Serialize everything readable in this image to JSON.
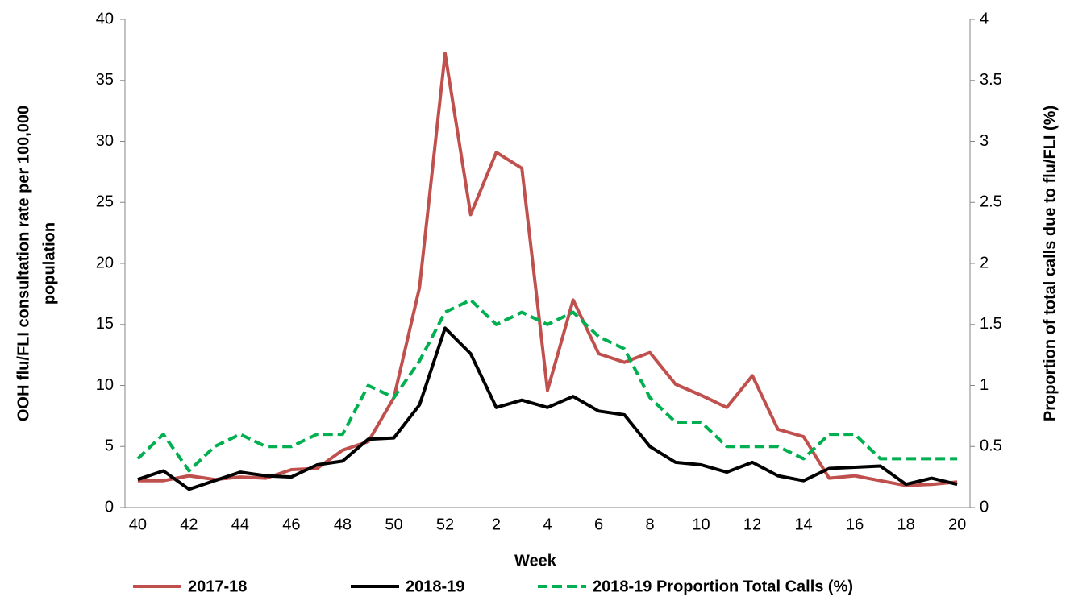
{
  "chart_data": {
    "type": "line",
    "xlabel": "Week",
    "ylabel": [
      "OOH flu/FLI consultation rate per 100,000",
      "population"
    ],
    "y2label": "Proportion of total calls due to flu/FLI (%)",
    "categories": [
      "40",
      null,
      "42",
      null,
      "44",
      null,
      "46",
      null,
      "48",
      null,
      "50",
      null,
      "52",
      null,
      "2",
      null,
      "4",
      null,
      "6",
      null,
      "8",
      null,
      "10",
      null,
      "12",
      null,
      "14",
      null,
      "16",
      null,
      "18",
      null,
      "20"
    ],
    "series": [
      {
        "name": "2017-18",
        "color": "#c0504d",
        "dash": false,
        "values": [
          2.2,
          2.2,
          2.6,
          2.3,
          2.5,
          2.4,
          3.1,
          3.2,
          4.7,
          5.4,
          9.0,
          18.0,
          37.2,
          24.0,
          29.1,
          27.8,
          9.6,
          17.0,
          12.6,
          11.9,
          12.7,
          10.1,
          9.2,
          8.2,
          10.8,
          6.4,
          5.8,
          2.4,
          2.6,
          2.2,
          1.8,
          1.9,
          2.1
        ]
      },
      {
        "name": "2018-19",
        "color": "#000000",
        "dash": false,
        "values": [
          2.3,
          3.0,
          1.5,
          2.2,
          2.9,
          2.6,
          2.5,
          3.5,
          3.8,
          5.6,
          5.7,
          8.4,
          14.7,
          12.6,
          8.2,
          8.8,
          8.2,
          9.1,
          7.9,
          7.6,
          5.0,
          3.7,
          3.5,
          2.9,
          3.7,
          2.6,
          2.2,
          3.2,
          3.3,
          3.4,
          1.9,
          2.4,
          1.9
        ]
      },
      {
        "name": "2018-19 Proportion Total Calls (%)",
        "color": "#00b050",
        "dash": true,
        "axis": "y2",
        "values": [
          0.4,
          0.6,
          0.3,
          0.5,
          0.6,
          0.5,
          0.5,
          0.6,
          0.6,
          1.0,
          0.9,
          1.2,
          1.6,
          1.7,
          1.5,
          1.6,
          1.5,
          1.6,
          1.4,
          1.3,
          0.9,
          0.7,
          0.7,
          0.5,
          0.5,
          0.5,
          0.4,
          0.6,
          0.6,
          0.4,
          0.4,
          0.4,
          0.4
        ]
      }
    ],
    "ylim": [
      0,
      40
    ],
    "yticks": [
      0,
      5,
      10,
      15,
      20,
      25,
      30,
      35,
      40
    ],
    "y2lim": [
      0,
      4
    ],
    "y2ticks": [
      0,
      0.5,
      1,
      1.5,
      2,
      2.5,
      3,
      3.5,
      4
    ],
    "legend": "bottom"
  }
}
